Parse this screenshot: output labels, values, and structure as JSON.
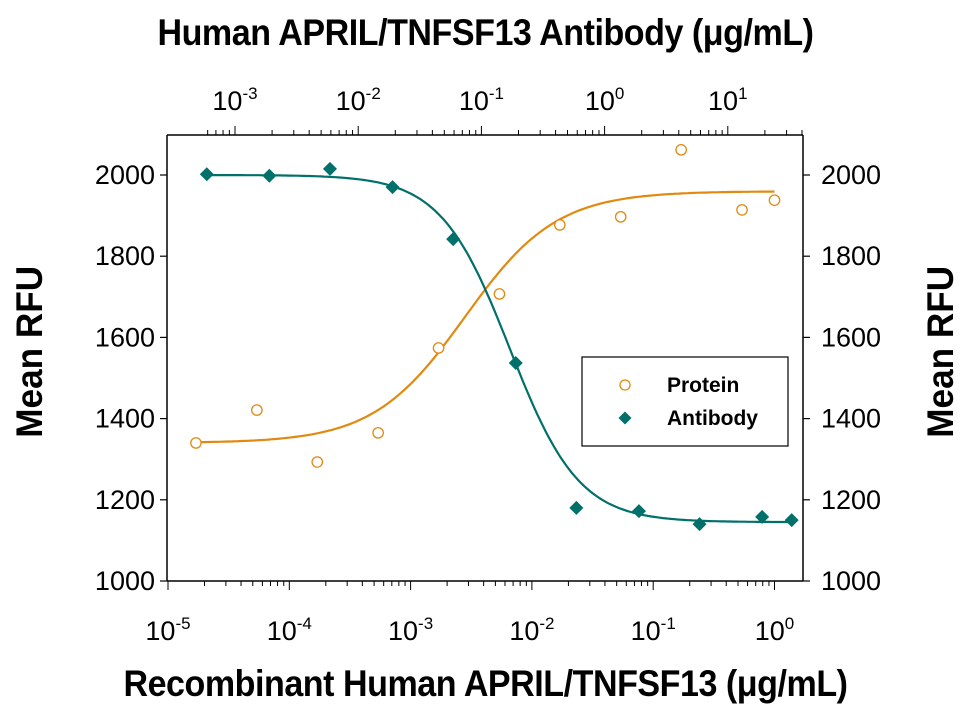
{
  "titles": {
    "top_axis": "Human APRIL/TNFSF13 Antibody (μg/mL)",
    "bottom_axis": "Recombinant Human APRIL/TNFSF13 (μg/mL)",
    "left_axis": "Mean RFU",
    "right_axis": "Mean RFU"
  },
  "legend": {
    "items": [
      {
        "label": "Protein",
        "marker": "open-circle",
        "color": "#E08A12"
      },
      {
        "label": "Antibody",
        "marker": "filled-diamond",
        "color": "#00706A"
      }
    ]
  },
  "colors": {
    "protein": "#E08A12",
    "antibody": "#00706A",
    "axis": "#000000"
  },
  "chart_data": {
    "type": "scatter",
    "title": "",
    "xlabel": "Recombinant Human APRIL/TNFSF13 (μg/mL)",
    "x2label": "Human APRIL/TNFSF13 Antibody (μg/mL)",
    "ylabel": "Mean RFU",
    "xscale": "log",
    "xlim": [
      1e-05,
      1.5
    ],
    "x2lim": [
      0.00055,
      40
    ],
    "ylim": [
      1000,
      2100
    ],
    "x_ticks": [
      "10^-5",
      "10^-4",
      "10^-3",
      "10^-2",
      "10^-1",
      "10^0"
    ],
    "x2_ticks": [
      "10^-3",
      "10^-2",
      "10^-1",
      "10^0",
      "10^1"
    ],
    "y_ticks": [
      1000,
      1200,
      1400,
      1600,
      1800,
      2000
    ],
    "grid": false,
    "legend_position": "inside right-middle",
    "series": [
      {
        "name": "Protein",
        "marker": "open circle",
        "fit": "4-parameter logistic (increasing)",
        "axis": "bottom",
        "x": [
          1.7e-05,
          5.4e-05,
          0.00017,
          0.00054,
          0.0017,
          0.0054,
          0.017,
          0.054,
          0.17,
          0.54,
          1.0
        ],
        "values": [
          1340,
          1421,
          1293,
          1365,
          1574,
          1707,
          1877,
          1897,
          2062,
          1914,
          1938
        ],
        "fit_bottom": 1340,
        "fit_top": 1960,
        "ec50": 0.0028
      },
      {
        "name": "Antibody",
        "marker": "filled diamond",
        "fit": "4-parameter logistic (decreasing)",
        "axis": "top",
        "x": [
          0.00059,
          0.0019,
          0.0059,
          0.019,
          0.059,
          0.19,
          0.59,
          1.9,
          5.9,
          19,
          33
        ],
        "values": [
          2002,
          1998,
          2015,
          1970,
          1842,
          1537,
          1180,
          1172,
          1140,
          1158,
          1150
        ],
        "fit_top": 2000,
        "fit_bottom": 1145,
        "ic50": 0.17
      }
    ],
    "annotations": []
  }
}
